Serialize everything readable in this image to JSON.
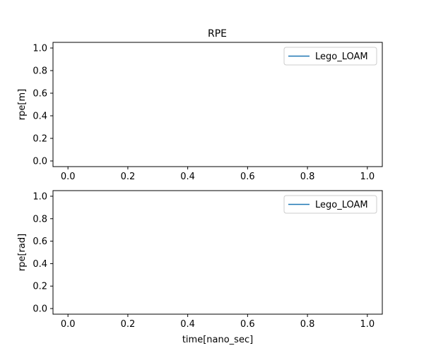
{
  "figure_title": "RPE",
  "chart_data": [
    {
      "type": "line",
      "title": "RPE",
      "xlabel": "",
      "ylabel": "rpe[m]",
      "xlim": [
        -0.05,
        1.05
      ],
      "ylim": [
        -0.05,
        1.05
      ],
      "xticks": [
        "0.0",
        "0.2",
        "0.4",
        "0.6",
        "0.8",
        "1.0"
      ],
      "yticks": [
        "0.0",
        "0.2",
        "0.4",
        "0.6",
        "0.8",
        "1.0"
      ],
      "grid": false,
      "legend_position": "top-right",
      "series": [
        {
          "name": "Lego_LOAM",
          "color": "#1f77b4",
          "x": [],
          "y": []
        }
      ]
    },
    {
      "type": "line",
      "title": "",
      "xlabel": "time[nano_sec]",
      "ylabel": "rpe[rad]",
      "xlim": [
        -0.05,
        1.05
      ],
      "ylim": [
        -0.05,
        1.05
      ],
      "xticks": [
        "0.0",
        "0.2",
        "0.4",
        "0.6",
        "0.8",
        "1.0"
      ],
      "yticks": [
        "0.0",
        "0.2",
        "0.4",
        "0.6",
        "0.8",
        "1.0"
      ],
      "grid": false,
      "legend_position": "top-right",
      "series": [
        {
          "name": "Lego_LOAM",
          "color": "#1f77b4",
          "x": [],
          "y": []
        }
      ]
    }
  ]
}
